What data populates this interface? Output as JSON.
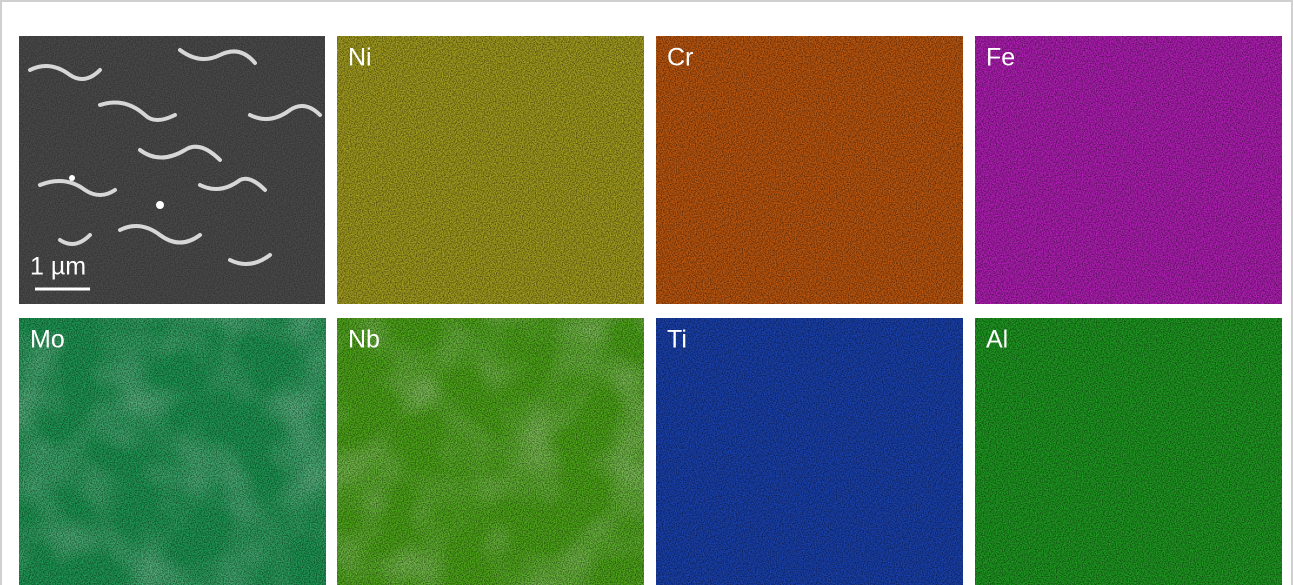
{
  "scale_bar": "1 µm",
  "panels": [
    {
      "label": "Ni",
      "color": "#a59f1f"
    },
    {
      "label": "Cr",
      "color": "#c0580f"
    },
    {
      "label": "Fe",
      "color": "#b21fb6"
    },
    {
      "label": "Mo",
      "color": "#1f9a55"
    },
    {
      "label": "Nb",
      "color": "#4fa91a"
    },
    {
      "label": "Ti",
      "color": "#1a42b0"
    },
    {
      "label": "Al",
      "color": "#1f9b22"
    }
  ]
}
